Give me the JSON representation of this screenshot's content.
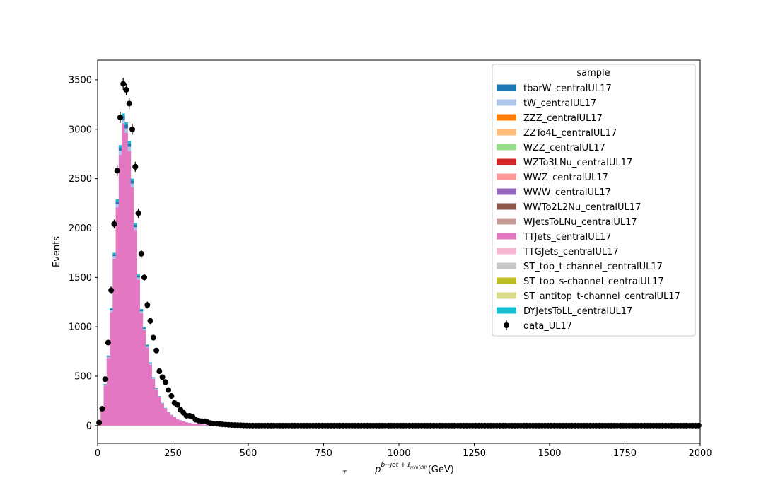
{
  "chart_data": {
    "type": "bar",
    "subtype": "stacked-histogram-with-data-points",
    "xlabel_main": "p",
    "xlabel_sub": "T",
    "xlabel_sup": "b−jet + ℓ",
    "xlabel_sup_sub": "min(dR)",
    "xlabel_unit": "(GeV)",
    "ylabel": "Events",
    "xlim": [
      0,
      2000
    ],
    "ylim": [
      -180,
      3700
    ],
    "x_ticks": [
      0,
      250,
      500,
      750,
      1000,
      1250,
      1500,
      1750,
      2000
    ],
    "x_tick_labels": [
      "0",
      "250",
      "500",
      "750",
      "1000",
      "1250",
      "1500",
      "1750",
      "2000"
    ],
    "y_ticks": [
      0,
      500,
      1000,
      1500,
      2000,
      2500,
      3000,
      3500
    ],
    "y_tick_labels": [
      "0",
      "500",
      "1000",
      "1500",
      "2000",
      "2500",
      "3000",
      "3500"
    ],
    "grid": false,
    "bin_width": 10,
    "bin_start": 0,
    "mc_total": [
      15,
      160,
      420,
      710,
      1190,
      1750,
      2290,
      2840,
      3160,
      3070,
      2880,
      2500,
      2050,
      1530,
      1180,
      1000,
      820,
      640,
      490,
      380,
      300,
      230,
      180,
      140,
      110,
      90,
      70,
      55,
      45,
      35,
      28,
      22,
      18,
      14,
      11,
      9,
      7,
      6,
      5,
      4,
      3,
      3,
      2,
      2,
      1,
      1,
      1,
      1,
      1,
      0
    ],
    "stack_fractions": {
      "TTJets_centralUL17": 0.965,
      "tW_centralUL17": 0.015,
      "tbarW_centralUL17": 0.012,
      "DYJetsToLL_centralUL17": 0.008
    },
    "data_points": {
      "x": [
        5,
        15,
        25,
        35,
        45,
        55,
        65,
        75,
        85,
        95,
        105,
        115,
        125,
        135,
        145,
        155,
        165,
        175,
        185,
        195,
        205,
        215,
        225,
        235,
        245,
        255,
        265,
        275,
        285,
        295,
        305,
        315,
        325,
        335,
        345,
        355,
        365,
        375,
        385,
        395,
        405,
        415,
        425,
        435,
        445,
        455,
        465,
        475,
        485,
        495
      ],
      "y": [
        30,
        170,
        470,
        840,
        1370,
        2040,
        2580,
        3120,
        3460,
        3400,
        3260,
        3000,
        2620,
        2150,
        1740,
        1500,
        1220,
        1060,
        890,
        760,
        550,
        490,
        440,
        360,
        300,
        230,
        210,
        160,
        130,
        100,
        100,
        90,
        60,
        50,
        45,
        45,
        35,
        25,
        20,
        18,
        15,
        12,
        10,
        8,
        6,
        5,
        4,
        3,
        2,
        1
      ],
      "tail_value": 0
    },
    "legend": {
      "title": "sample",
      "placement": "upper right",
      "entries": [
        {
          "label": "tbarW_centralUL17",
          "color": "#1f77b4",
          "kind": "patch"
        },
        {
          "label": "tW_centralUL17",
          "color": "#aec7e8",
          "kind": "patch"
        },
        {
          "label": "ZZZ_centralUL17",
          "color": "#ff7f0e",
          "kind": "patch"
        },
        {
          "label": "ZZTo4L_centralUL17",
          "color": "#ffbb78",
          "kind": "patch"
        },
        {
          "label": "WZZ_centralUL17",
          "color": "#98df8a",
          "kind": "patch"
        },
        {
          "label": "WZTo3LNu_centralUL17",
          "color": "#d62728",
          "kind": "patch"
        },
        {
          "label": "WWZ_centralUL17",
          "color": "#ff9896",
          "kind": "patch"
        },
        {
          "label": "WWW_centralUL17",
          "color": "#9467bd",
          "kind": "patch"
        },
        {
          "label": "WWTo2L2Nu_centralUL17",
          "color": "#8c564b",
          "kind": "patch"
        },
        {
          "label": "WJetsToLNu_centralUL17",
          "color": "#c49c94",
          "kind": "patch"
        },
        {
          "label": "TTJets_centralUL17",
          "color": "#e377c2",
          "kind": "patch"
        },
        {
          "label": "TTGJets_centralUL17",
          "color": "#f7b6d2",
          "kind": "patch"
        },
        {
          "label": "ST_top_t-channel_centralUL17",
          "color": "#c7c7c7",
          "kind": "patch"
        },
        {
          "label": "ST_top_s-channel_centralUL17",
          "color": "#bcbd22",
          "kind": "patch"
        },
        {
          "label": "ST_antitop_t-channel_centralUL17",
          "color": "#dbdb8d",
          "kind": "patch"
        },
        {
          "label": "DYJetsToLL_centralUL17",
          "color": "#17becf",
          "kind": "patch"
        },
        {
          "label": "data_UL17",
          "color": "#000000",
          "kind": "errorbar"
        }
      ]
    }
  }
}
